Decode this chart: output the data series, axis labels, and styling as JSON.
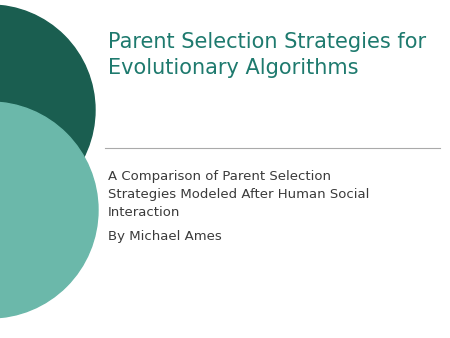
{
  "title_line1": "Parent Selection Strategies for",
  "title_line2": "Evolutionary Algorithms",
  "title_color": "#1E7A6E",
  "subtitle_line1": "A Comparison of Parent Selection",
  "subtitle_line2": "Strategies Modeled After Human Social",
  "subtitle_line3": "Interaction",
  "subtitle_line4": "By Michael Ames",
  "subtitle_color": "#3A3A3A",
  "bg_color": "#FFFFFF",
  "circle_dark_color": "#1A5E50",
  "circle_light_color": "#6BB8AA",
  "separator_color": "#AAAAAA",
  "title_fontsize": 15,
  "subtitle_fontsize": 9.5
}
